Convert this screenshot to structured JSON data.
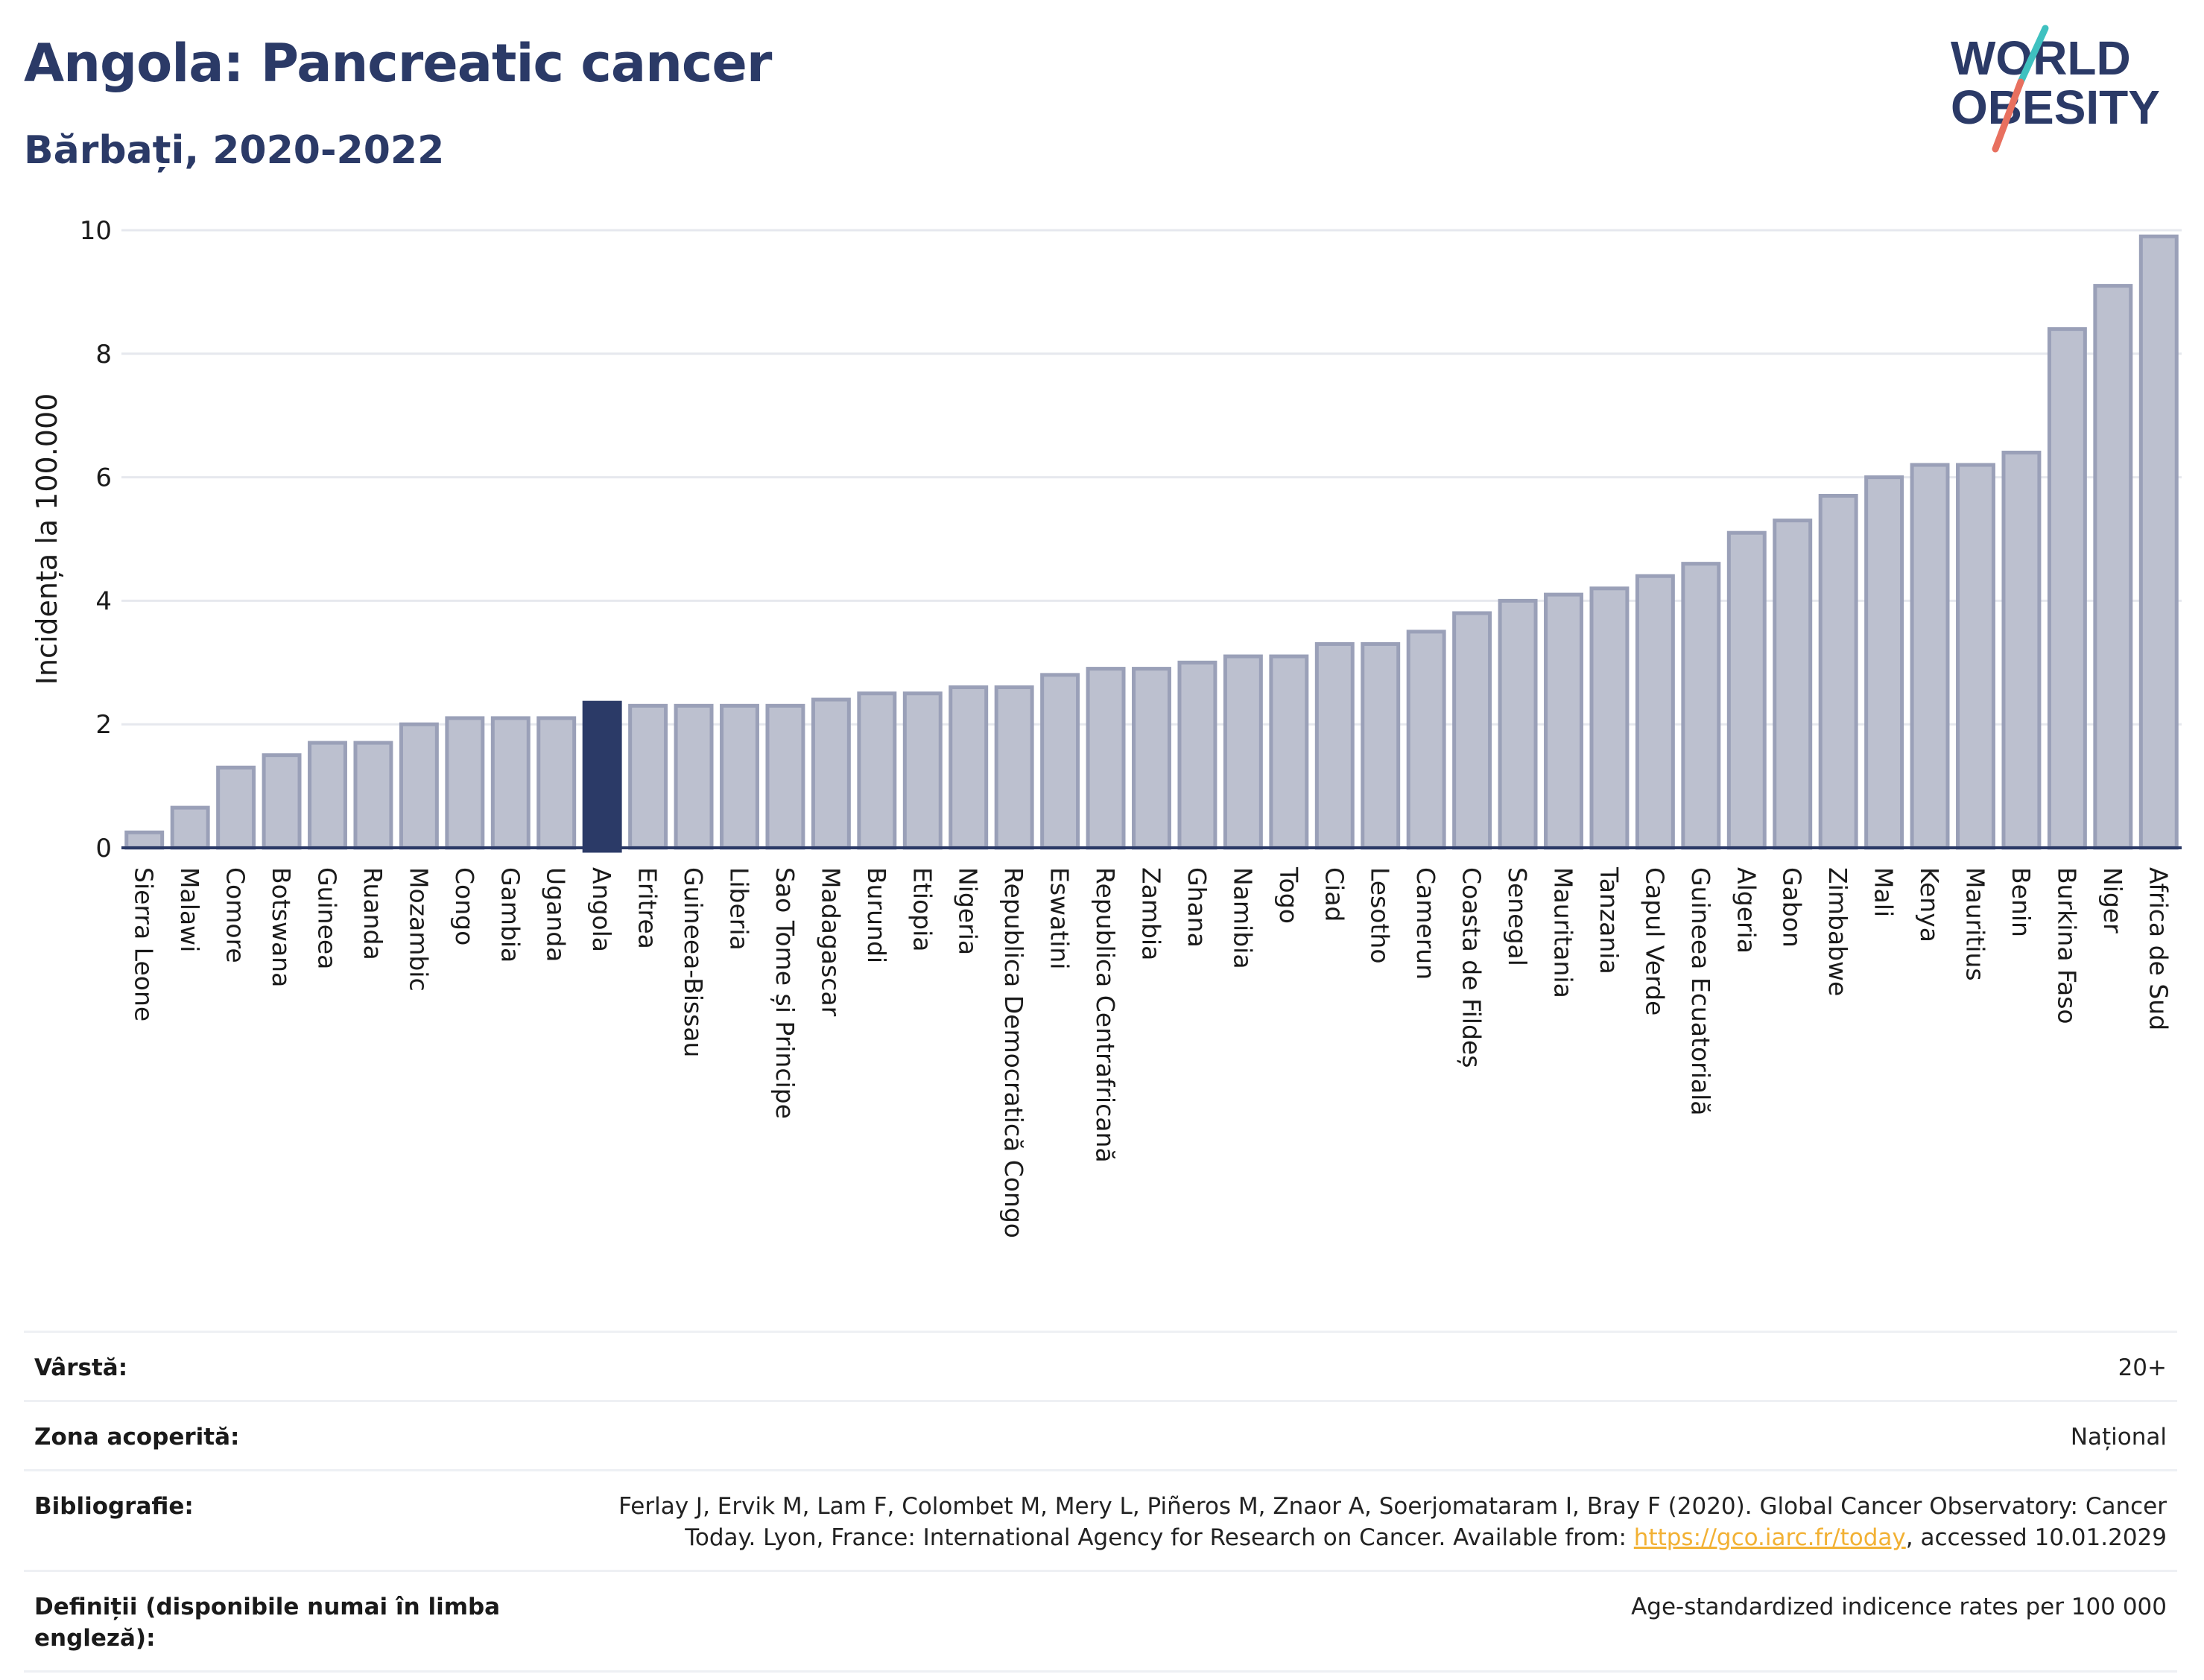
{
  "header": {
    "title": "Angola: Pancreatic cancer",
    "subtitle": "Bărbați, 2020-2022"
  },
  "logo": {
    "line1": "WORLD",
    "line2": "OBESITY",
    "colors": {
      "text": "#2b3a67",
      "slash_top": "#3fc1c0",
      "slash_bottom": "#e8705f"
    }
  },
  "colors": {
    "bar_fill": "#bcc0cf",
    "bar_stroke": "#9aa0b8",
    "highlight": "#2b3a67",
    "grid": "#e6e8ee",
    "axis": "#2b3a67"
  },
  "chart_data": {
    "type": "bar",
    "ylabel": "Incidența la 100.000",
    "xlabel": "",
    "ylim": [
      0,
      10
    ],
    "yticks": [
      0,
      2,
      4,
      6,
      8,
      10
    ],
    "grid": true,
    "highlight": "Angola",
    "categories": [
      "Sierra Leone",
      "Malawi",
      "Comore",
      "Botswana",
      "Guineea",
      "Ruanda",
      "Mozambic",
      "Congo",
      "Gambia",
      "Uganda",
      "Angola",
      "Eritrea",
      "Guineea-Bissau",
      "Liberia",
      "Sao Tome și Principe",
      "Madagascar",
      "Burundi",
      "Etiopia",
      "Nigeria",
      "Republica Democratică Congo",
      "Eswatini",
      "Republica Centrafricană",
      "Zambia",
      "Ghana",
      "Namibia",
      "Togo",
      "Ciad",
      "Lesotho",
      "Camerun",
      "Coasta de Fildeș",
      "Senegal",
      "Mauritania",
      "Tanzania",
      "Capul Verde",
      "Guineea Ecuatorială",
      "Algeria",
      "Gabon",
      "Zimbabwe",
      "Mali",
      "Kenya",
      "Mauritius",
      "Benin",
      "Burkina Faso",
      "Niger",
      "Africa de Sud"
    ],
    "values": [
      0.25,
      0.65,
      1.3,
      1.5,
      1.7,
      1.7,
      2.0,
      2.1,
      2.1,
      2.1,
      2.35,
      2.3,
      2.3,
      2.3,
      2.3,
      2.4,
      2.5,
      2.5,
      2.6,
      2.6,
      2.8,
      2.9,
      2.9,
      3.0,
      3.1,
      3.1,
      3.3,
      3.3,
      3.5,
      3.8,
      4.0,
      4.1,
      4.2,
      4.4,
      4.6,
      5.1,
      5.3,
      5.7,
      6.0,
      6.2,
      6.2,
      6.4,
      8.4,
      9.1,
      9.9
    ]
  },
  "info": [
    {
      "label": "Vârstă:",
      "value": "20+"
    },
    {
      "label": "Zona acoperită:",
      "value": "Național"
    },
    {
      "label": "Bibliografie:",
      "value_pre": "Ferlay J, Ervik M, Lam F, Colombet M, Mery L, Piñeros M, Znaor A, Soerjomataram I, Bray F (2020). Global Cancer Observatory: Cancer Today. Lyon, France: International Agency for Research on Cancer. Available from: ",
      "link": "https://gco.iarc.fr/today",
      "value_post": ", accessed 10.01.2029"
    },
    {
      "label": "Definiții (disponibile numai în limba engleză):",
      "value": "Age-standardized indicence rates per 100 000"
    }
  ]
}
